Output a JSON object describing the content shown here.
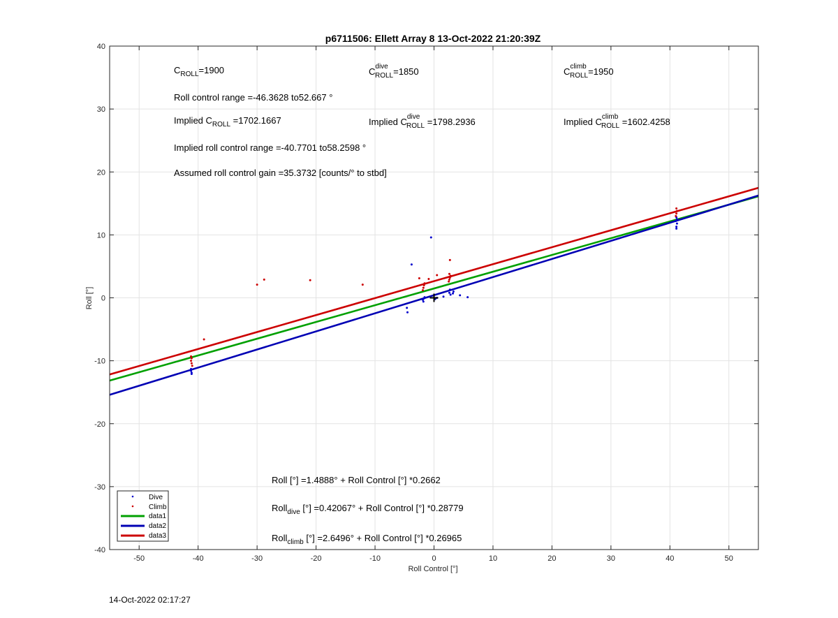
{
  "chart_data": {
    "type": "scatter",
    "title": "p6711506: Ellett Array 8 13-Oct-2022 21:20:39Z",
    "xlabel": "Roll Control [°]",
    "ylabel": "Roll [°]",
    "xlim": [
      -55,
      55
    ],
    "ylim": [
      -40,
      40
    ],
    "xticks": [
      -50,
      -40,
      -30,
      -20,
      -10,
      0,
      10,
      20,
      30,
      40,
      50
    ],
    "yticks": [
      -40,
      -30,
      -20,
      -10,
      0,
      10,
      20,
      30,
      40
    ],
    "grid": true,
    "legend_position": "bottom-left",
    "colors": {
      "dive": "#0000cc",
      "climb": "#cc0000",
      "data1": "#00a000",
      "data2": "#0000b4",
      "data3": "#cc0000"
    },
    "series": [
      {
        "name": "Dive",
        "kind": "points",
        "points": [
          [
            -41.2,
            -11.3
          ],
          [
            -41.2,
            -11.6
          ],
          [
            -41.1,
            -11.9
          ],
          [
            -41.1,
            -12.1
          ],
          [
            -41.3,
            -11.5
          ],
          [
            -4.6,
            -1.6
          ],
          [
            -4.5,
            -2.3
          ],
          [
            -3.8,
            5.3
          ],
          [
            -1.9,
            -0.3
          ],
          [
            -1.8,
            -0.6
          ],
          [
            -1.7,
            -0.1
          ],
          [
            -1.6,
            0.1
          ],
          [
            -0.5,
            9.6
          ],
          [
            0.2,
            -0.2
          ],
          [
            0.5,
            0.0
          ],
          [
            1.6,
            0.2
          ],
          [
            2.6,
            0.8
          ],
          [
            2.7,
            1.3
          ],
          [
            2.8,
            0.5
          ],
          [
            3.2,
            0.7
          ],
          [
            3.3,
            1.0
          ],
          [
            4.4,
            0.4
          ],
          [
            5.7,
            0.1
          ],
          [
            41.1,
            11.0
          ],
          [
            41.1,
            11.3
          ],
          [
            41.2,
            11.8
          ],
          [
            41.0,
            12.2
          ],
          [
            41.2,
            12.5
          ],
          [
            41.1,
            12.8
          ]
        ]
      },
      {
        "name": "Climb",
        "kind": "points",
        "points": [
          [
            -41.2,
            -9.3
          ],
          [
            -41.1,
            -9.6
          ],
          [
            -41.2,
            -10.0
          ],
          [
            -41.1,
            -10.4
          ],
          [
            -41.0,
            -10.8
          ],
          [
            -39.0,
            -6.6
          ],
          [
            -30.0,
            2.1
          ],
          [
            -28.8,
            2.9
          ],
          [
            -21.0,
            2.8
          ],
          [
            -12.1,
            2.1
          ],
          [
            -2.5,
            3.1
          ],
          [
            -1.9,
            1.2
          ],
          [
            -1.8,
            1.6
          ],
          [
            -1.7,
            2.0
          ],
          [
            -1.6,
            2.3
          ],
          [
            -0.9,
            3.0
          ],
          [
            0.5,
            3.6
          ],
          [
            2.5,
            2.6
          ],
          [
            2.6,
            2.9
          ],
          [
            2.7,
            3.2
          ],
          [
            2.8,
            3.5
          ],
          [
            2.6,
            3.8
          ],
          [
            2.7,
            6.0
          ],
          [
            41.0,
            13.0
          ],
          [
            41.1,
            13.4
          ],
          [
            41.2,
            13.8
          ],
          [
            41.1,
            14.2
          ]
        ]
      },
      {
        "name": "data1",
        "kind": "line",
        "intercept": 1.4888,
        "slope": 0.2662
      },
      {
        "name": "data2",
        "kind": "line",
        "intercept": 0.42067,
        "slope": 0.28779
      },
      {
        "name": "data3",
        "kind": "line",
        "intercept": 2.6496,
        "slope": 0.26965
      }
    ],
    "marker": {
      "x": 0,
      "y": 0,
      "symbol": "+"
    },
    "annotations": {
      "c_roll": {
        "base": "C",
        "sub": "ROLL",
        "value": "=1900"
      },
      "c_roll_dive": {
        "base": "C",
        "sup": "dive",
        "sub": "ROLL",
        "value": "=1850"
      },
      "c_roll_climb": {
        "base": "C",
        "sup": "climb",
        "sub": "ROLL",
        "value": "=1950"
      },
      "roll_range": "Roll control range =-46.3628 to52.667 °",
      "implied_c_roll": {
        "prefix": "Implied C",
        "sub": "ROLL",
        "value": " =1702.1667"
      },
      "implied_c_roll_dive": {
        "prefix": "Implied C",
        "sup": "dive",
        "sub": "ROLL",
        "value": " =1798.2936"
      },
      "implied_c_roll_climb": {
        "prefix": "Implied C",
        "sup": "climb",
        "sub": "ROLL",
        "value": " =1602.4258"
      },
      "implied_range": "Implied roll control range =-40.7701 to58.2598 °",
      "assumed_gain": "Assumed roll control gain =35.3732 [counts/° to stbd]",
      "fit_all": "Roll [°] =1.4888° + Roll Control [°] *0.2662",
      "fit_dive": {
        "base": "Roll",
        "sub": "dive",
        "value": " [°] =0.42067° + Roll Control [°] *0.28779"
      },
      "fit_climb": {
        "base": "Roll",
        "sub": "climb",
        "value": " [°] =2.6496° + Roll Control [°] *0.26965"
      }
    }
  },
  "footer": {
    "timestamp": "14-Oct-2022 02:17:27"
  }
}
